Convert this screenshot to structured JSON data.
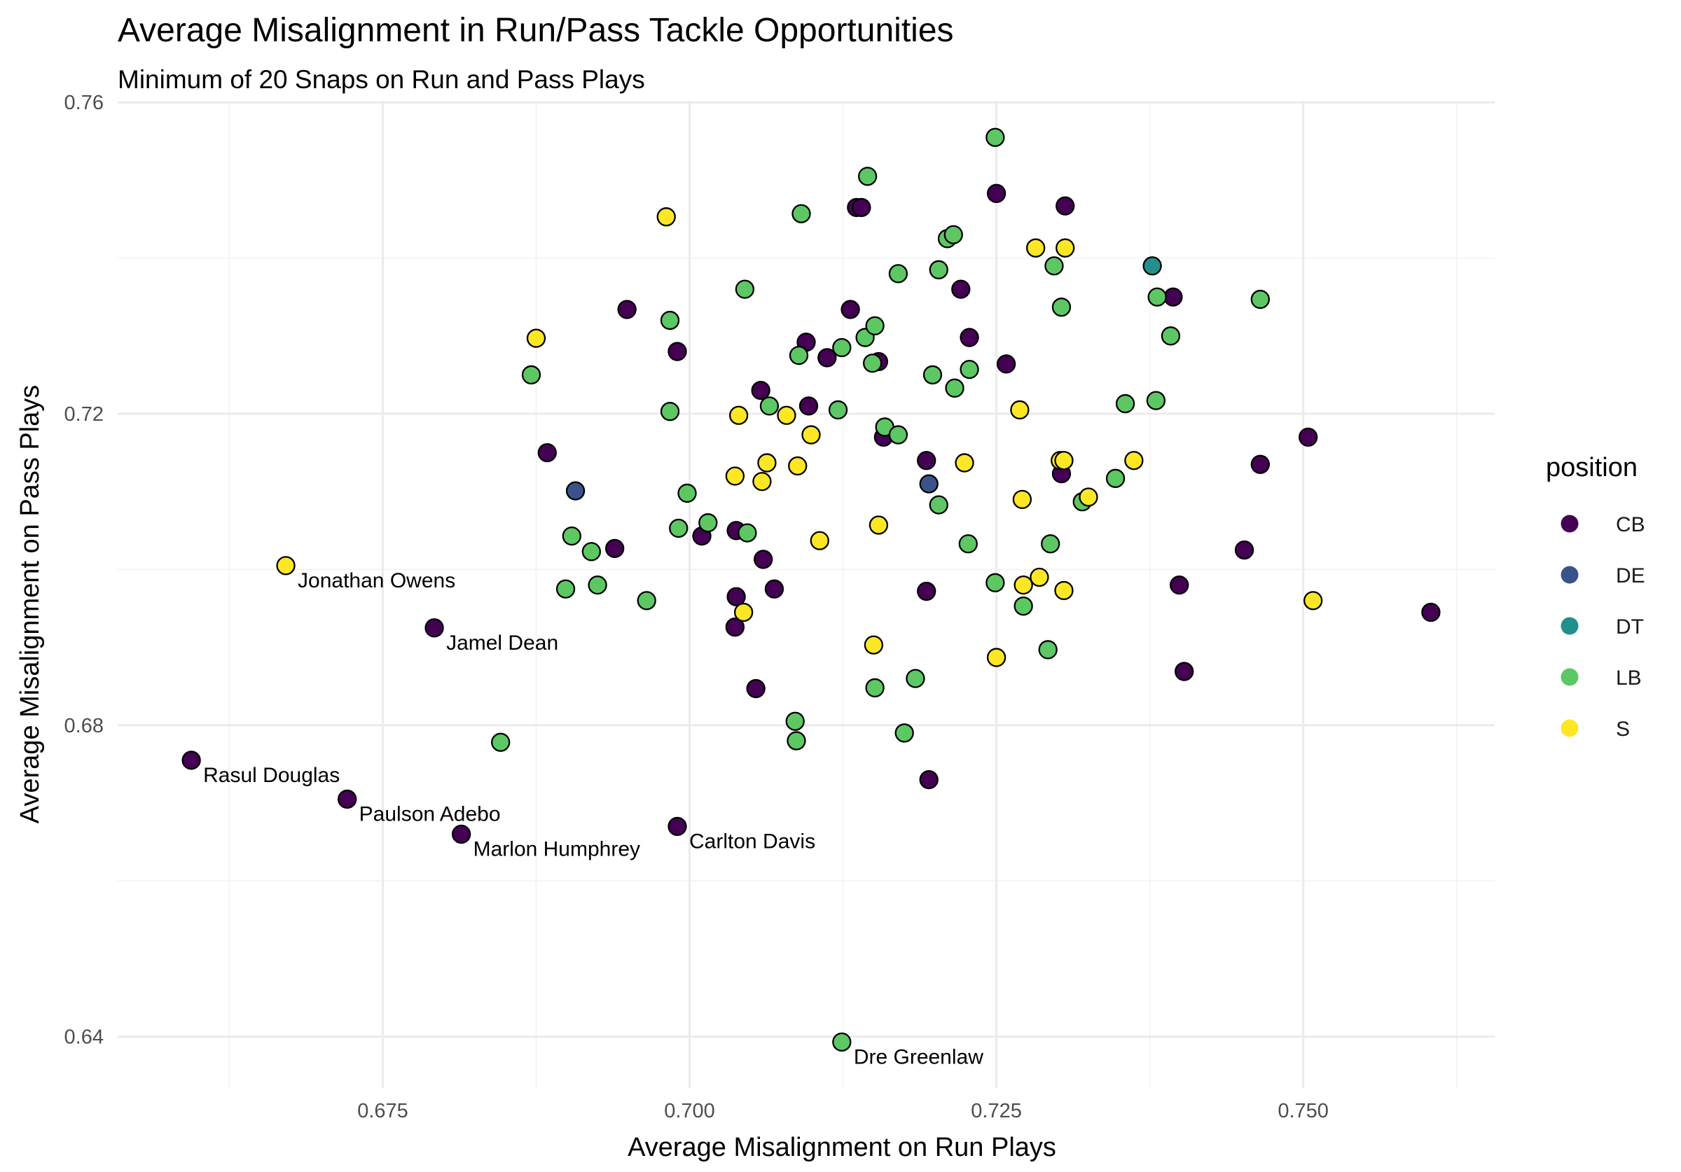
{
  "chart_data": {
    "type": "scatter",
    "title": "Average Misalignment in Run/Pass Tackle Opportunities",
    "subtitle": "Minimum of 20 Snaps on Run and Pass Plays",
    "xlabel": "Average Misalignment on Run Plays",
    "ylabel": "Average Misalignment on Pass Plays",
    "xlim": [
      0.6534,
      0.7656
    ],
    "ylim": [
      0.6334,
      0.7602
    ],
    "x_ticks": [
      0.675,
      0.7,
      0.725,
      0.75
    ],
    "x_tick_labels": [
      "0.675",
      "0.700",
      "0.725",
      "0.750"
    ],
    "y_ticks": [
      0.64,
      0.68,
      0.72,
      0.76
    ],
    "y_tick_labels": [
      "0.64",
      "0.68",
      "0.72",
      "0.76"
    ],
    "grid": true,
    "legend": {
      "title": "position",
      "placement": "right",
      "entries": [
        {
          "label": "CB",
          "color": "#440154"
        },
        {
          "label": "DE",
          "color": "#3B528B"
        },
        {
          "label": "DT",
          "color": "#21908C"
        },
        {
          "label": "LB",
          "color": "#5DC863"
        },
        {
          "label": "S",
          "color": "#FDE725"
        }
      ]
    },
    "series": [
      {
        "name": "CB",
        "color": "#440154",
        "points": [
          [
            0.6594,
            0.6755,
            "Rasul Douglas"
          ],
          [
            0.6721,
            0.6705,
            "Paulson Adebo"
          ],
          [
            0.6814,
            0.666,
            "Marlon Humphrey"
          ],
          [
            0.6792,
            0.6925,
            "Jamel Dean"
          ],
          [
            0.699,
            0.667,
            "Carlton Davis"
          ],
          [
            0.6884,
            0.715,
            null
          ],
          [
            0.6939,
            0.7027,
            null
          ],
          [
            0.6949,
            0.7334,
            null
          ],
          [
            0.699,
            0.728,
            null
          ],
          [
            0.701,
            0.7043,
            null
          ],
          [
            0.7038,
            0.705,
            null
          ],
          [
            0.7038,
            0.6965,
            null
          ],
          [
            0.7037,
            0.6926,
            null
          ],
          [
            0.7054,
            0.6847,
            null
          ],
          [
            0.7058,
            0.723,
            null
          ],
          [
            0.706,
            0.7013,
            null
          ],
          [
            0.7069,
            0.6975,
            null
          ],
          [
            0.7095,
            0.7292,
            null
          ],
          [
            0.7097,
            0.721,
            null
          ],
          [
            0.7112,
            0.7272,
            null
          ],
          [
            0.7131,
            0.7334,
            null
          ],
          [
            0.7136,
            0.7465,
            null
          ],
          [
            0.714,
            0.7465,
            null
          ],
          [
            0.7154,
            0.7267,
            null
          ],
          [
            0.7158,
            0.717,
            null
          ],
          [
            0.7193,
            0.714,
            null
          ],
          [
            0.7193,
            0.6972,
            null
          ],
          [
            0.7195,
            0.673,
            null
          ],
          [
            0.7221,
            0.736,
            null
          ],
          [
            0.7228,
            0.7298,
            null
          ],
          [
            0.725,
            0.7483,
            null
          ],
          [
            0.7258,
            0.7264,
            null
          ],
          [
            0.7303,
            0.7123,
            null
          ],
          [
            0.7306,
            0.7467,
            null
          ],
          [
            0.7394,
            0.735,
            null
          ],
          [
            0.7399,
            0.698,
            null
          ],
          [
            0.7403,
            0.6869,
            null
          ],
          [
            0.7452,
            0.7025,
            null
          ],
          [
            0.7465,
            0.7135,
            null
          ],
          [
            0.7504,
            0.717,
            null
          ],
          [
            0.7604,
            0.6945,
            null
          ]
        ]
      },
      {
        "name": "DE",
        "color": "#3B528B",
        "points": [
          [
            0.6907,
            0.7101,
            null
          ],
          [
            0.7195,
            0.711,
            null
          ]
        ]
      },
      {
        "name": "DT",
        "color": "#21908C",
        "points": [
          [
            0.7377,
            0.739,
            null
          ]
        ]
      },
      {
        "name": "LB",
        "color": "#5DC863",
        "points": [
          [
            0.7124,
            0.6393,
            "Dre Greenlaw"
          ],
          [
            0.6846,
            0.6778,
            null
          ],
          [
            0.6871,
            0.725,
            null
          ],
          [
            0.6899,
            0.6975,
            null
          ],
          [
            0.6904,
            0.7043,
            null
          ],
          [
            0.692,
            0.7023,
            null
          ],
          [
            0.6925,
            0.698,
            null
          ],
          [
            0.6965,
            0.696,
            null
          ],
          [
            0.6984,
            0.732,
            null
          ],
          [
            0.6984,
            0.7203,
            null
          ],
          [
            0.6991,
            0.7053,
            null
          ],
          [
            0.6998,
            0.7098,
            null
          ],
          [
            0.7015,
            0.706,
            null
          ],
          [
            0.7045,
            0.736,
            null
          ],
          [
            0.7047,
            0.7047,
            null
          ],
          [
            0.7065,
            0.721,
            null
          ],
          [
            0.7086,
            0.6805,
            null
          ],
          [
            0.7087,
            0.678,
            null
          ],
          [
            0.7089,
            0.7275,
            null
          ],
          [
            0.7091,
            0.7457,
            null
          ],
          [
            0.7121,
            0.7205,
            null
          ],
          [
            0.7124,
            0.7285,
            null
          ],
          [
            0.7143,
            0.7298,
            null
          ],
          [
            0.7145,
            0.7505,
            null
          ],
          [
            0.7149,
            0.7265,
            null
          ],
          [
            0.7151,
            0.7313,
            null
          ],
          [
            0.7151,
            0.6848,
            null
          ],
          [
            0.7159,
            0.7183,
            null
          ],
          [
            0.717,
            0.7173,
            null
          ],
          [
            0.717,
            0.738,
            null
          ],
          [
            0.7175,
            0.679,
            null
          ],
          [
            0.7184,
            0.686,
            null
          ],
          [
            0.7198,
            0.725,
            null
          ],
          [
            0.7203,
            0.7385,
            null
          ],
          [
            0.7203,
            0.7083,
            null
          ],
          [
            0.721,
            0.7425,
            null
          ],
          [
            0.7215,
            0.743,
            null
          ],
          [
            0.7216,
            0.7233,
            null
          ],
          [
            0.7227,
            0.7033,
            null
          ],
          [
            0.7228,
            0.7257,
            null
          ],
          [
            0.7249,
            0.6983,
            null
          ],
          [
            0.7249,
            0.7555,
            null
          ],
          [
            0.7272,
            0.6953,
            null
          ],
          [
            0.7292,
            0.6897,
            null
          ],
          [
            0.7294,
            0.7033,
            null
          ],
          [
            0.7297,
            0.739,
            null
          ],
          [
            0.7303,
            0.7337,
            null
          ],
          [
            0.732,
            0.7087,
            null
          ],
          [
            0.7347,
            0.7117,
            null
          ],
          [
            0.7355,
            0.7213,
            null
          ],
          [
            0.738,
            0.7217,
            null
          ],
          [
            0.7381,
            0.735,
            null
          ],
          [
            0.7392,
            0.73,
            null
          ],
          [
            0.7465,
            0.7347,
            null
          ]
        ]
      },
      {
        "name": "S",
        "color": "#FDE725",
        "points": [
          [
            0.6671,
            0.7005,
            "Jonathan Owens"
          ],
          [
            0.6875,
            0.7297,
            null
          ],
          [
            0.6981,
            0.7453,
            null
          ],
          [
            0.7037,
            0.712,
            null
          ],
          [
            0.704,
            0.7198,
            null
          ],
          [
            0.7044,
            0.6945,
            null
          ],
          [
            0.7059,
            0.7113,
            null
          ],
          [
            0.7063,
            0.7137,
            null
          ],
          [
            0.7079,
            0.7198,
            null
          ],
          [
            0.7088,
            0.7133,
            null
          ],
          [
            0.7099,
            0.7173,
            null
          ],
          [
            0.7106,
            0.7037,
            null
          ],
          [
            0.715,
            0.6903,
            null
          ],
          [
            0.7154,
            0.7057,
            null
          ],
          [
            0.7224,
            0.7137,
            null
          ],
          [
            0.725,
            0.6887,
            null
          ],
          [
            0.7269,
            0.7205,
            null
          ],
          [
            0.7271,
            0.709,
            null
          ],
          [
            0.7272,
            0.698,
            null
          ],
          [
            0.7282,
            0.7413,
            null
          ],
          [
            0.7285,
            0.699,
            null
          ],
          [
            0.7302,
            0.714,
            null
          ],
          [
            0.7305,
            0.714,
            null
          ],
          [
            0.7305,
            0.6973,
            null
          ],
          [
            0.7306,
            0.7413,
            null
          ],
          [
            0.7325,
            0.7093,
            null
          ],
          [
            0.7362,
            0.714,
            null
          ],
          [
            0.7508,
            0.696,
            null
          ]
        ]
      }
    ]
  }
}
